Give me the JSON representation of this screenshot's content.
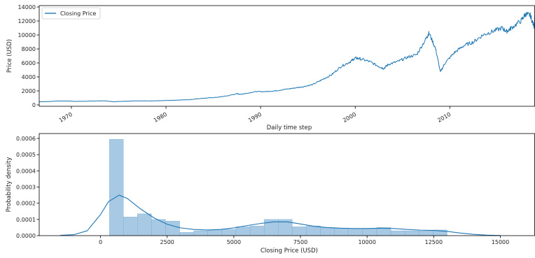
{
  "colors": {
    "line": "#1f77b4",
    "bar_fill": "#a7c9e3",
    "bar_edge": "#6aa2cd",
    "axis": "#000000"
  },
  "chart_data": [
    {
      "type": "line",
      "name": "price-over-time",
      "title": "",
      "xlabel": "Daily time step",
      "ylabel": "Price (USD)",
      "xlim": [
        1966.6,
        2019.0
      ],
      "ylim": [
        -200,
        14200
      ],
      "xticks": [
        1970,
        1980,
        1990,
        2000,
        2010
      ],
      "xtick_labels": [
        "1970",
        "1980",
        "1990",
        "2000",
        "2010"
      ],
      "yticks": [
        0,
        2000,
        4000,
        6000,
        8000,
        10000,
        12000,
        14000
      ],
      "ytick_labels": [
        "0",
        "2000",
        "4000",
        "6000",
        "8000",
        "10000",
        "12000",
        "14000"
      ],
      "legend": {
        "placement": "top-left",
        "entries": [
          "Closing Price"
        ]
      },
      "series": [
        {
          "name": "Closing Price",
          "x": [
            1966.6,
            1967.5,
            1968.5,
            1969.5,
            1970.5,
            1971.5,
            1972.5,
            1973.5,
            1974.5,
            1975.5,
            1976.5,
            1977.5,
            1978.5,
            1979.5,
            1980.5,
            1981.5,
            1982.5,
            1983.5,
            1984.5,
            1985.5,
            1986.5,
            1987.5,
            1987.8,
            1988.5,
            1989.5,
            1990.5,
            1991.5,
            1992.5,
            1993.5,
            1994.5,
            1995.5,
            1996.5,
            1997.5,
            1998.5,
            1999.5,
            2000.0,
            2000.5,
            2001.5,
            2002.5,
            2003.0,
            2003.5,
            2004.5,
            2005.5,
            2006.5,
            2007.5,
            2007.8,
            2008.5,
            2009.0,
            2009.5,
            2010.5,
            2011.5,
            2012.5,
            2013.5,
            2014.5,
            2015.5,
            2016.0,
            2016.5,
            2017.5,
            2018.0,
            2018.5,
            2018.9,
            2019.0
          ],
          "y": [
            450,
            470,
            550,
            560,
            500,
            520,
            560,
            580,
            450,
            520,
            560,
            580,
            560,
            600,
            650,
            700,
            750,
            900,
            1000,
            1100,
            1300,
            1600,
            1500,
            1650,
            1900,
            1900,
            2000,
            2200,
            2400,
            2600,
            2900,
            3600,
            4300,
            5500,
            6200,
            6700,
            6600,
            6200,
            5500,
            5200,
            5800,
            6200,
            6800,
            7200,
            9500,
            10300,
            8000,
            4700,
            6000,
            7500,
            8500,
            9000,
            10000,
            10500,
            11000,
            10500,
            11000,
            12000,
            13000,
            12800,
            11200,
            12500
          ]
        }
      ]
    },
    {
      "type": "bar",
      "name": "closing-price-distribution",
      "title": "",
      "xlabel": "Closing Price (USD)",
      "ylabel": "Probability density",
      "xlim": [
        -2300,
        16300
      ],
      "ylim": [
        0,
        0.00063
      ],
      "xticks": [
        0,
        2500,
        5000,
        7500,
        10000,
        12500,
        15000
      ],
      "xtick_labels": [
        "0",
        "2500",
        "5000",
        "7500",
        "10000",
        "12500",
        "15000"
      ],
      "yticks": [
        0,
        0.0001,
        0.0002,
        0.0003,
        0.0004,
        0.0005,
        0.0006
      ],
      "ytick_labels": [
        "0.0000",
        "0.0001",
        "0.0002",
        "0.0003",
        "0.0004",
        "0.0005",
        "0.0006"
      ],
      "bin_edges": [
        330,
        858,
        1386,
        1914,
        2442,
        2970,
        3498,
        4026,
        4554,
        5082,
        5610,
        6138,
        6666,
        7194,
        7722,
        8250,
        8778,
        9306,
        9834,
        10362,
        10890,
        11418,
        11946,
        12474,
        13002
      ],
      "densities": [
        0.000595,
        0.000115,
        0.000135,
        0.0001,
        9e-05,
        2e-05,
        3e-05,
        3.5e-05,
        4e-05,
        5.5e-05,
        6e-05,
        0.0001,
        0.0001,
        5.5e-05,
        6e-05,
        5e-05,
        4.5e-05,
        4e-05,
        4.5e-05,
        5e-05,
        3e-05,
        3e-05,
        3e-05,
        3.5e-05
      ],
      "kde_curve": {
        "x": [
          -1500,
          -1000,
          -500,
          0,
          300,
          700,
          1000,
          1500,
          2000,
          2500,
          3000,
          3500,
          4000,
          4500,
          5000,
          5500,
          6000,
          6500,
          7000,
          7500,
          8000,
          8500,
          9000,
          9500,
          10000,
          10500,
          11000,
          11500,
          12000,
          12500,
          13000,
          13500,
          14000,
          14500,
          15000
        ],
        "y": [
          2e-06,
          6e-06,
          3e-05,
          0.00013,
          0.00021,
          0.00025,
          0.00023,
          0.000165,
          0.00011,
          7e-05,
          4.8e-05,
          3.8e-05,
          3.5e-05,
          3.8e-05,
          4.8e-05,
          6.2e-05,
          7.5e-05,
          8.5e-05,
          8.5e-05,
          7.2e-05,
          5.8e-05,
          5e-05,
          4.6e-05,
          4.4e-05,
          4.4e-05,
          4.6e-05,
          4.4e-05,
          3.8e-05,
          3.4e-05,
          3.2e-05,
          2.6e-05,
          1.6e-05,
          8e-06,
          3e-06,
          1e-06
        ]
      }
    }
  ]
}
